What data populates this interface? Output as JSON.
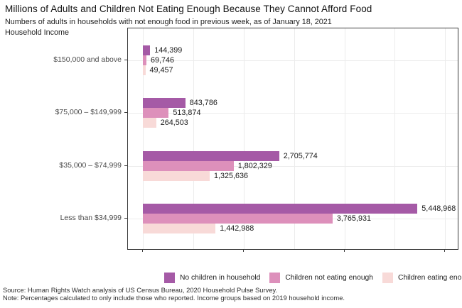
{
  "header": {
    "title": "Millions of Adults and Children Not Eating Enough Because They Cannot Afford Food",
    "subtitle": "Numbers of adults in households with not enough food in previous week, as of January 18, 2021",
    "y_axis_title": "Household Income"
  },
  "chart_data": {
    "type": "bar",
    "orientation": "horizontal",
    "categories": [
      "$150,000 and above",
      "$75,000 – $149,999",
      "$35,000 – $74,999",
      "Less than $34,999"
    ],
    "series": [
      {
        "name": "No children in household",
        "color": "#a55aa6",
        "values": [
          144399,
          843786,
          2705774,
          5448968
        ]
      },
      {
        "name": "Children not eating enough",
        "color": "#dd90bb",
        "values": [
          69746,
          513874,
          1802329,
          3765931
        ]
      },
      {
        "name": "Children eating enough",
        "color": "#f8dad8",
        "values": [
          49457,
          264503,
          1325636,
          1442988
        ]
      }
    ],
    "value_labels": [
      [
        "144,399",
        "843,786",
        "2,705,774",
        "5,448,968"
      ],
      [
        "69,746",
        "513,874",
        "1,802,329",
        "3,765,931"
      ],
      [
        "49,457",
        "264,503",
        "1,325,636",
        "1,442,988"
      ]
    ],
    "xlim": [
      0,
      6250000
    ],
    "x_major_grid_step": 1000000,
    "x_tick_step": 2000000,
    "grid": true,
    "legend_position": "bottom",
    "axis_color": "#3c3c3c",
    "grid_color": "#ececec"
  },
  "footer": {
    "source": "Source: Human Rights Watch analysis of US Census Bureau, 2020 Household Pulse Survey.",
    "note": "Note: Percentages calculated to only include those who reported. Income groups based on 2019 household income."
  }
}
